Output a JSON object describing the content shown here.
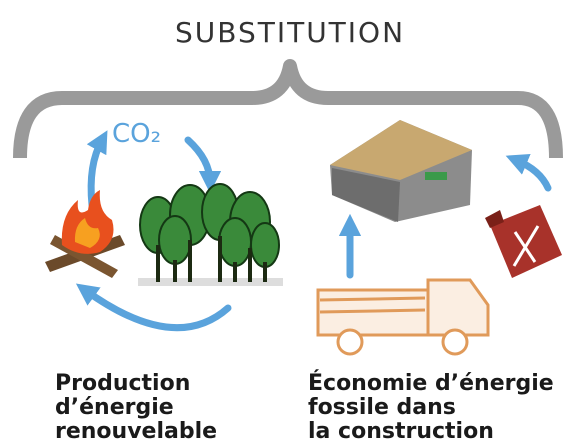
{
  "title": "SUBSTITUTION",
  "cycle": {
    "label": "CO₂"
  },
  "captions": [
    {
      "lines": [
        "Production",
        "d’énergie",
        "renouvelable"
      ]
    },
    {
      "lines": [
        "Économie d’énergie",
        "fossile dans",
        "la construction"
      ]
    }
  ]
}
